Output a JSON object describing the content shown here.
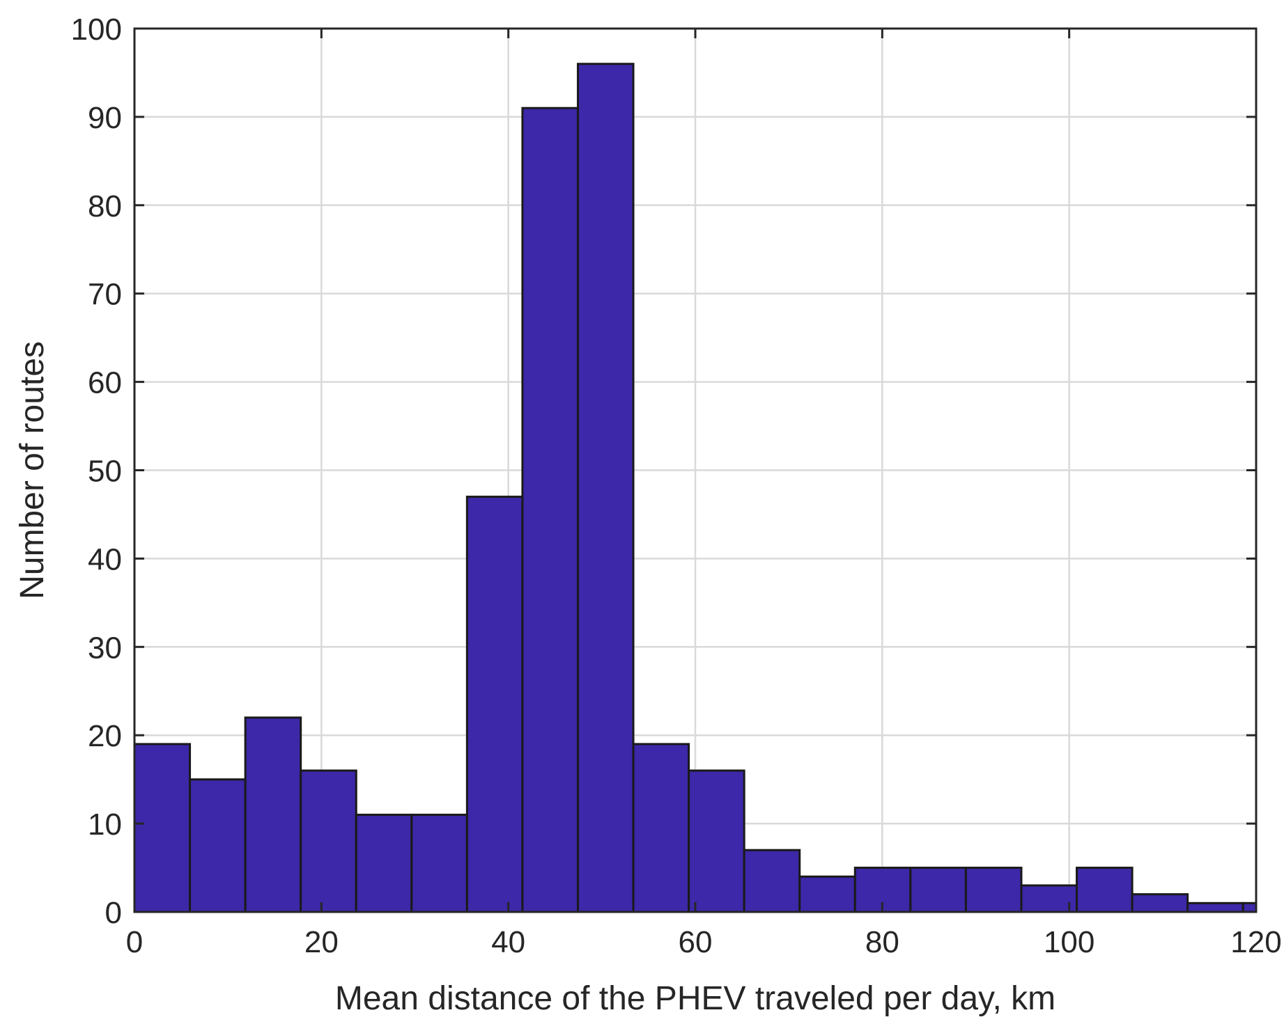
{
  "chart_data": {
    "type": "bar",
    "subtype": "histogram",
    "xlabel": "Mean distance of the PHEV traveled per day, km",
    "ylabel": "Number of routes",
    "xlim": [
      0,
      120
    ],
    "ylim": [
      0,
      100
    ],
    "xticks": [
      0,
      20,
      40,
      60,
      80,
      100,
      120
    ],
    "yticks": [
      0,
      10,
      20,
      30,
      40,
      50,
      60,
      70,
      80,
      90,
      100
    ],
    "grid": true,
    "bar_color": "#3c28a8",
    "bin_width": 5.93,
    "bin_start": 0,
    "values": [
      19,
      15,
      22,
      16,
      11,
      11,
      47,
      91,
      96,
      19,
      16,
      7,
      4,
      5,
      5,
      5,
      3,
      5,
      2,
      1,
      1
    ]
  }
}
